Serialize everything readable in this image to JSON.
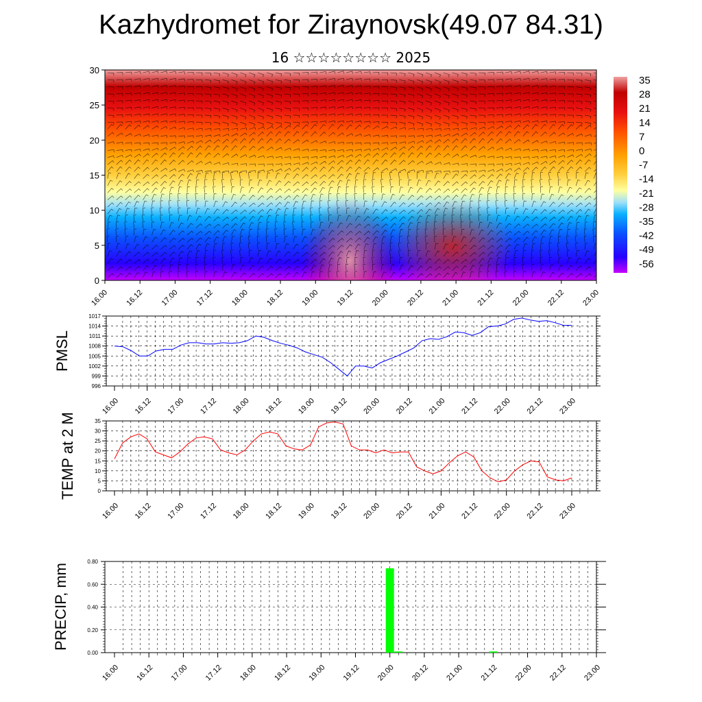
{
  "header": {
    "title": "Kazhydromet for Ziraynovsk(49.07 84.31)",
    "subtitle": "16 ☆☆☆☆☆☆☆☆ 2025"
  },
  "chart_data": [
    {
      "id": "cross-section",
      "type": "heatmap",
      "title": "",
      "ylabel": "",
      "ylim": [
        0,
        30
      ],
      "yticks": [
        "0",
        "5",
        "10",
        "15",
        "20",
        "25",
        "30"
      ],
      "xticks": [
        "16.00",
        "16.12",
        "17.00",
        "17.12",
        "18.00",
        "18.12",
        "19.00",
        "19.12",
        "20.00",
        "20.12",
        "21.00",
        "21.12",
        "22.00",
        "22.12",
        "23.00"
      ],
      "colorbar": {
        "labels": [
          "35",
          "28",
          "21",
          "14",
          "7",
          "0",
          "-7",
          "-14",
          "-21",
          "-28",
          "-35",
          "-42",
          "-49",
          "-56"
        ],
        "range": [
          -63,
          42
        ]
      },
      "wind_barbs": true
    },
    {
      "id": "pmsl",
      "type": "line",
      "ylabel": "PMSL",
      "ylim": [
        996,
        1017
      ],
      "yticks": [
        "996",
        "999",
        "1002",
        "1005",
        "1008",
        "1011",
        "1014",
        "1017"
      ],
      "xticks": [
        "16.00",
        "16.12",
        "17.00",
        "17.12",
        "18.00",
        "18.12",
        "19.00",
        "19.12",
        "20.00",
        "20.12",
        "21.00",
        "21.12",
        "22.00",
        "22.12",
        "23.00"
      ],
      "color": "#0000ff",
      "series": [
        {
          "values": [
            1008,
            1007.8,
            1006.6,
            1005,
            1005,
            1006.5,
            1007,
            1007,
            1008.3,
            1009,
            1009,
            1008.6,
            1008.6,
            1009,
            1008.8,
            1009,
            1009.6,
            1011,
            1010.6,
            1009.6,
            1008.8,
            1008.2,
            1007.4,
            1006.2,
            1005.4,
            1004.6,
            1003,
            1001,
            999,
            1002,
            1002,
            1001.4,
            1003,
            1004,
            1005,
            1006.2,
            1007.4,
            1009.6,
            1010.2,
            1010,
            1010.8,
            1012.2,
            1012,
            1011.2,
            1012,
            1013.8,
            1014,
            1014.6,
            1016,
            1016.4,
            1015.8,
            1015.4,
            1015.6,
            1015,
            1014.2,
            1014.2
          ]
        }
      ]
    },
    {
      "id": "temp",
      "type": "line",
      "ylabel": "TEMP at 2 M",
      "ylim": [
        0,
        35
      ],
      "yticks": [
        "0",
        "5",
        "10",
        "15",
        "20",
        "25",
        "30",
        "35"
      ],
      "xticks": [
        "16.00",
        "16.12",
        "17.00",
        "17.12",
        "18.00",
        "18.12",
        "19.00",
        "19.12",
        "20.00",
        "20.12",
        "21.00",
        "21.12",
        "22.00",
        "22.12",
        "23.00"
      ],
      "color": "#ff0000",
      "series": [
        {
          "values": [
            16,
            24,
            27,
            28.5,
            26,
            19.5,
            18,
            16.5,
            19.5,
            23.5,
            26.5,
            27,
            26,
            20.5,
            19,
            18,
            20.5,
            25,
            28.5,
            29.5,
            28.5,
            22.5,
            21,
            20.5,
            23,
            32,
            34,
            34.5,
            33.5,
            22.5,
            20.5,
            20.5,
            19,
            20.5,
            19,
            19.5,
            19.5,
            12,
            10,
            8.5,
            10,
            14,
            17.5,
            19.5,
            17,
            10,
            6.5,
            4.5,
            5.5,
            10,
            13,
            15,
            14.5,
            7,
            5.5,
            5,
            6.5
          ]
        }
      ]
    },
    {
      "id": "precip",
      "type": "bar",
      "ylabel": "PRECIP, mm",
      "ylim": [
        0,
        0.8
      ],
      "yticks": [
        "0.00",
        "0.20",
        "0.40",
        "0.60",
        "0.80"
      ],
      "xticks": [
        "16.00",
        "16.12",
        "17.00",
        "17.12",
        "18.00",
        "18.12",
        "19.00",
        "19.12",
        "20.00",
        "20.12",
        "21.00",
        "21.12",
        "22.00",
        "22.12",
        "23.00"
      ],
      "color": "#00ff00",
      "bars": [
        {
          "x": "20.00",
          "value": 0.74
        },
        {
          "x": "20.03",
          "value": 0.01
        },
        {
          "x": "21.12",
          "value": 0.01
        }
      ]
    }
  ]
}
